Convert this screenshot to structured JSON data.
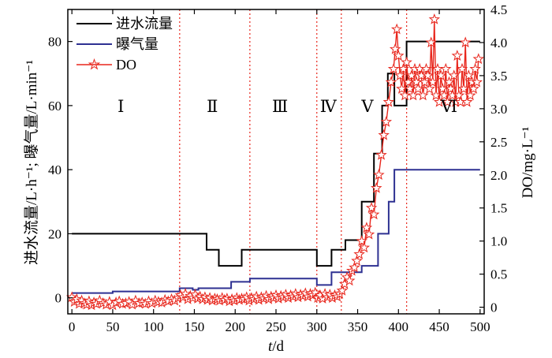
{
  "chart_data": {
    "type": "line",
    "xlabel": "t/d",
    "ylabel_left": "进水流量/L·h⁻¹; 曝气量/L·min⁻¹",
    "ylabel_right": "DO/mg·L⁻¹",
    "xlim": [
      -5,
      505
    ],
    "ylim_left": [
      -5,
      90
    ],
    "ylim_right": [
      -0.1,
      4.5
    ],
    "x_ticks": [
      0,
      50,
      100,
      150,
      200,
      250,
      300,
      350,
      400,
      450,
      500
    ],
    "y_left_ticks": [
      0,
      20,
      40,
      60,
      80
    ],
    "y_right_ticks": [
      0,
      0.5,
      1.0,
      1.5,
      2.0,
      2.5,
      3.0,
      3.5,
      4.0,
      4.5
    ],
    "y_right_tick_labels": [
      "0",
      "0.5",
      "1.0",
      "1.5",
      "2.0",
      "2.5",
      "3.0",
      "3.5",
      "4.0",
      "4.5"
    ],
    "grid": false,
    "legend_position": "top-left",
    "phase_boundaries": [
      132,
      218,
      300,
      330,
      410
    ],
    "phase_labels": [
      {
        "label": "Ⅰ",
        "x": 60
      },
      {
        "label": "Ⅱ",
        "x": 172
      },
      {
        "label": "Ⅲ",
        "x": 255
      },
      {
        "label": "Ⅳ",
        "x": 314
      },
      {
        "label": "Ⅴ",
        "x": 362
      },
      {
        "label": "Ⅵ",
        "x": 462
      }
    ],
    "phase_label_y": 60,
    "series": [
      {
        "name": "进水流量",
        "axis": "left",
        "color": "#000000",
        "style": "step",
        "x": [
          0,
          165,
          165,
          180,
          180,
          208,
          208,
          300,
          300,
          318,
          318,
          335,
          335,
          355,
          355,
          370,
          370,
          380,
          380,
          387,
          387,
          395,
          395,
          410,
          410,
          500
        ],
        "y": [
          20,
          20,
          15,
          15,
          10,
          10,
          15,
          15,
          10,
          10,
          15,
          15,
          18,
          18,
          30,
          30,
          45,
          45,
          60,
          60,
          70,
          70,
          60,
          60,
          80,
          80
        ]
      },
      {
        "name": "曝气量",
        "axis": "left",
        "color": "#2e3192",
        "style": "step",
        "x": [
          0,
          50,
          50,
          132,
          132,
          148,
          148,
          155,
          155,
          195,
          195,
          218,
          218,
          300,
          300,
          318,
          318,
          355,
          355,
          375,
          375,
          388,
          388,
          395,
          395,
          500
        ],
        "y": [
          1.5,
          1.5,
          2,
          2,
          3,
          3,
          2.5,
          2.5,
          3,
          3,
          5,
          5,
          6,
          6,
          4,
          4,
          8,
          8,
          10,
          10,
          20,
          20,
          30,
          30,
          40,
          40
        ]
      },
      {
        "name": "DO",
        "axis": "right",
        "color": "#e8261c",
        "style": "line-star",
        "x": [
          0,
          3,
          6,
          9,
          12,
          15,
          18,
          21,
          24,
          27,
          30,
          34,
          38,
          42,
          46,
          50,
          54,
          58,
          62,
          66,
          70,
          74,
          78,
          82,
          86,
          90,
          94,
          98,
          102,
          106,
          110,
          114,
          118,
          122,
          126,
          130,
          133,
          136,
          139,
          142,
          145,
          148,
          151,
          154,
          157,
          160,
          163,
          166,
          169,
          172,
          175,
          178,
          181,
          184,
          187,
          190,
          193,
          196,
          199,
          202,
          205,
          208,
          211,
          214,
          217,
          220,
          223,
          226,
          229,
          232,
          235,
          238,
          241,
          244,
          247,
          250,
          253,
          256,
          259,
          262,
          265,
          268,
          271,
          274,
          277,
          280,
          283,
          286,
          289,
          292,
          295,
          298,
          301,
          304,
          307,
          310,
          313,
          316,
          319,
          322,
          325,
          328,
          331,
          334,
          337,
          340,
          343,
          346,
          349,
          352,
          355,
          358,
          361,
          364,
          367,
          370,
          373,
          376,
          379,
          382,
          385,
          388,
          391,
          394,
          396,
          398,
          400,
          402,
          404,
          406,
          408,
          410,
          412,
          414,
          416,
          418,
          420,
          422,
          424,
          426,
          428,
          430,
          432,
          434,
          436,
          438,
          440,
          442,
          444,
          446,
          448,
          450,
          452,
          454,
          456,
          458,
          460,
          462,
          464,
          466,
          468,
          470,
          472,
          474,
          476,
          478,
          480,
          482,
          484,
          486,
          488,
          490,
          492,
          494,
          496,
          498
        ],
        "y": [
          0.15,
          0.08,
          0.12,
          0.05,
          0.1,
          0.06,
          0.04,
          0.09,
          0.03,
          0.07,
          0.05,
          0.1,
          0.06,
          0.04,
          0.08,
          0.03,
          0.07,
          0.09,
          0.05,
          0.06,
          0.08,
          0.04,
          0.1,
          0.06,
          0.07,
          0.05,
          0.09,
          0.06,
          0.1,
          0.08,
          0.07,
          0.11,
          0.09,
          0.12,
          0.1,
          0.14,
          0.18,
          0.15,
          0.2,
          0.12,
          0.17,
          0.14,
          0.19,
          0.13,
          0.16,
          0.12,
          0.15,
          0.11,
          0.14,
          0.1,
          0.13,
          0.12,
          0.1,
          0.14,
          0.11,
          0.13,
          0.09,
          0.12,
          0.1,
          0.14,
          0.11,
          0.13,
          0.12,
          0.15,
          0.1,
          0.14,
          0.12,
          0.16,
          0.11,
          0.15,
          0.13,
          0.17,
          0.12,
          0.16,
          0.14,
          0.18,
          0.13,
          0.17,
          0.15,
          0.19,
          0.14,
          0.18,
          0.16,
          0.2,
          0.15,
          0.19,
          0.17,
          0.21,
          0.16,
          0.2,
          0.18,
          0.22,
          0.14,
          0.18,
          0.13,
          0.2,
          0.15,
          0.19,
          0.14,
          0.18,
          0.16,
          0.2,
          0.25,
          0.35,
          0.45,
          0.4,
          0.55,
          0.6,
          0.7,
          0.8,
          1.0,
          0.9,
          1.2,
          1.1,
          1.5,
          1.4,
          1.8,
          2.0,
          2.3,
          2.6,
          2.8,
          3.1,
          3.4,
          3.6,
          3.9,
          4.2,
          3.8,
          3.5,
          3.3,
          3.6,
          3.2,
          3.7,
          3.4,
          3.3,
          3.5,
          3.2,
          3.6,
          3.4,
          3.3,
          3.6,
          3.5,
          3.2,
          3.4,
          3.6,
          3.5,
          3.3,
          4.0,
          3.4,
          4.35,
          3.2,
          3.6,
          3.1,
          3.5,
          3.3,
          3.2,
          3.6,
          3.1,
          3.4,
          3.3,
          3.2,
          3.5,
          3.1,
          3.8,
          3.2,
          3.1,
          3.6,
          3.3,
          4.0,
          3.1,
          3.5,
          3.2,
          3.4,
          3.3,
          3.6,
          3.4,
          3.75
        ]
      }
    ]
  },
  "colors": {
    "flow": "#000000",
    "aeration": "#2e3192",
    "do": "#e8261c",
    "phase_line": "#e8261c"
  }
}
